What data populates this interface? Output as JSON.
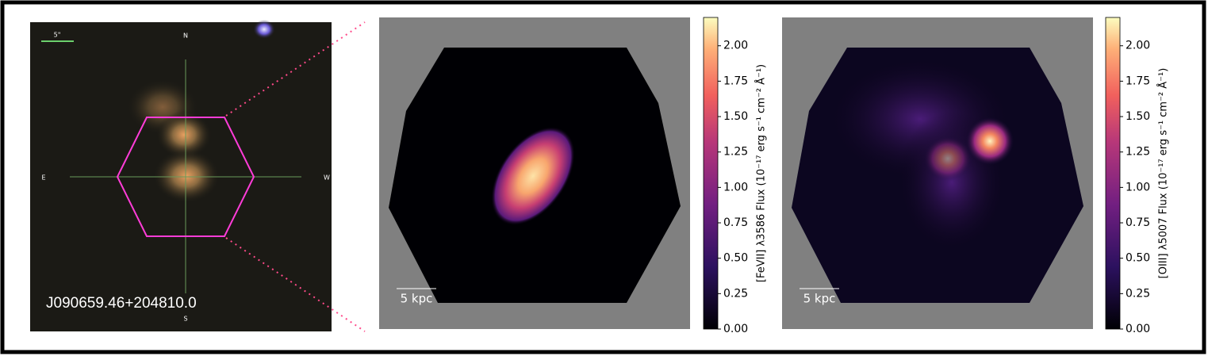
{
  "chart_data": [
    {
      "type": "image",
      "title": "J090659.46+204810.0",
      "scale_label": "5\"",
      "compass": {
        "north": "N",
        "south": "S",
        "east": "E",
        "west": "W"
      }
    },
    {
      "type": "heatmap",
      "scale_label": "5 kpc",
      "colorbar_label": "[FeVII] λ3586 Flux (10⁻¹⁷ erg s⁻¹ cm⁻² Å⁻¹)",
      "clim": [
        0,
        2.2
      ],
      "cticks": [
        {
          "value": 0,
          "label": "0.00"
        },
        {
          "value": 0.25,
          "label": "0.25"
        },
        {
          "value": 0.5,
          "label": "0.50"
        },
        {
          "value": 0.75,
          "label": "0.75"
        },
        {
          "value": 1,
          "label": "1.00"
        },
        {
          "value": 1.25,
          "label": "1.25"
        },
        {
          "value": 1.5,
          "label": "1.50"
        },
        {
          "value": 1.75,
          "label": "1.75"
        },
        {
          "value": 2,
          "label": "2.00"
        }
      ]
    },
    {
      "type": "heatmap",
      "scale_label": "5 kpc",
      "colorbar_label": "[OIII] λ5007 Flux (10⁻¹⁷ erg s⁻¹ cm⁻² Å⁻¹)",
      "clim": [
        0,
        2.2
      ],
      "cticks": [
        {
          "value": 0,
          "label": "0.00"
        },
        {
          "value": 0.25,
          "label": "0.25"
        },
        {
          "value": 0.5,
          "label": "0.50"
        },
        {
          "value": 0.75,
          "label": "0.75"
        },
        {
          "value": 1,
          "label": "1.00"
        },
        {
          "value": 1.25,
          "label": "1.25"
        },
        {
          "value": 1.5,
          "label": "1.50"
        },
        {
          "value": 1.75,
          "label": "1.75"
        },
        {
          "value": 2,
          "label": "2.00"
        }
      ]
    }
  ]
}
